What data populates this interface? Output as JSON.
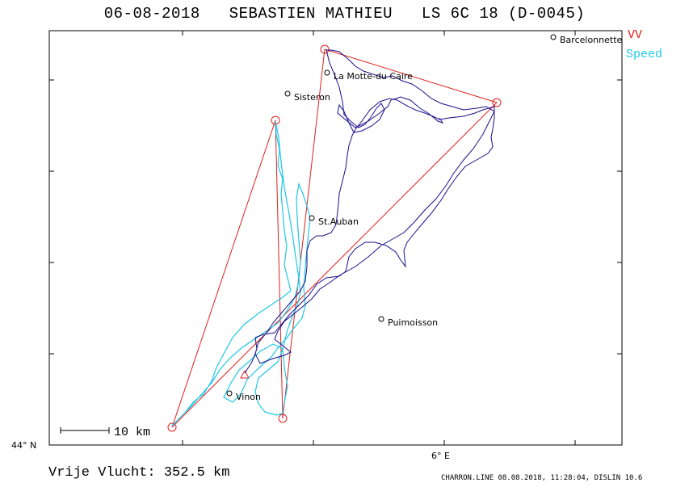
{
  "title": {
    "date": "06-08-2018",
    "pilot": "SEBASTIEN MATHIEU",
    "glider": "LS 6C 18 (D-0045)"
  },
  "legend": {
    "vv_label": "VV",
    "speed_label": "Speed",
    "vv_color": "#e0201c",
    "speed_color": "#1ec8e6",
    "track_color": "#1a0e8a"
  },
  "axes": {
    "lat_label": "44° N",
    "lon_label": "6° E"
  },
  "scale": {
    "label": "10 km"
  },
  "cities": [
    {
      "name": "Barcelonnette"
    },
    {
      "name": "La Motte-du Caire"
    },
    {
      "name": "Sisteron"
    },
    {
      "name": "St.Auban"
    },
    {
      "name": "Puimoisson"
    },
    {
      "name": "Vinon"
    }
  ],
  "footer": {
    "distance": "Vrije Vlucht:  352.5 km",
    "software": "CHARRON.LINE 08.08.2018, 11:28:04, DISLIN 10.6"
  }
}
